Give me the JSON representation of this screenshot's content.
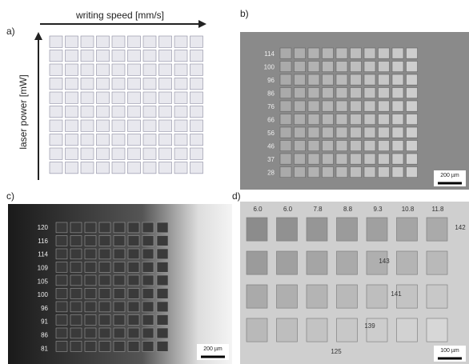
{
  "panels": [
    {
      "label": "a)",
      "x_axis_label": "writing speed [mm/s]",
      "y_axis_label": "laser power [mW]"
    },
    {
      "label": "b)",
      "row_labels": [
        "114",
        "100",
        "96",
        "86",
        "76",
        "66",
        "56",
        "46",
        "37",
        "28"
      ],
      "scale_bar": "200 µm"
    },
    {
      "label": "c)",
      "row_labels": [
        "120",
        "116",
        "114",
        "109",
        "105",
        "100",
        "96",
        "91",
        "86",
        "81"
      ],
      "scale_bar": "200 µm"
    },
    {
      "label": "d)",
      "column_labels": [
        "6.0",
        "6.0",
        "7.8",
        "8.8",
        "9.3",
        "10.8",
        "11.8"
      ],
      "side_labels": [
        "142",
        "143",
        "141",
        "139",
        "125"
      ],
      "scale_bar": "100 µm"
    }
  ]
}
